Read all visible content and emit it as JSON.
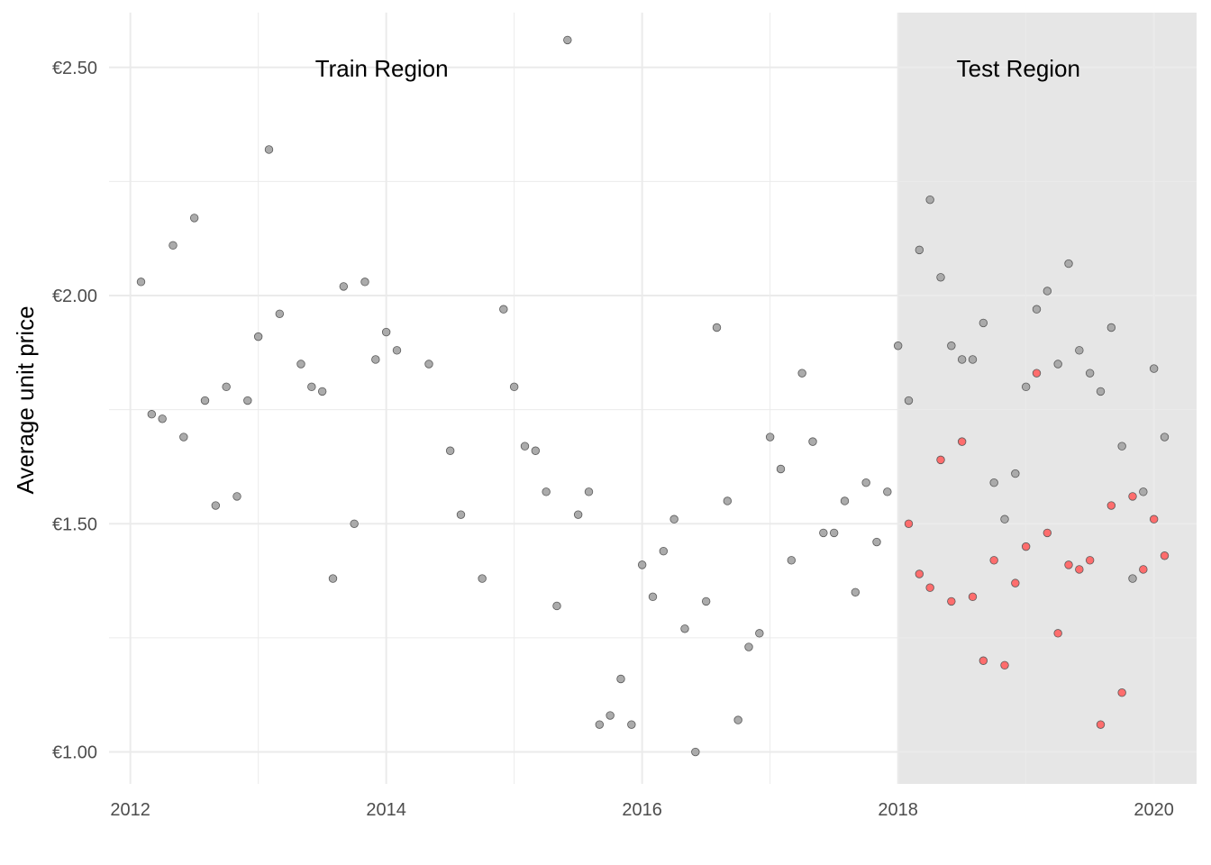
{
  "chart_data": {
    "type": "scatter",
    "title": "",
    "xlabel": "",
    "ylabel": "Average unit price",
    "x_unit": "date",
    "xlim": [
      "2011-11-01",
      "2020-05-01"
    ],
    "ylim": [
      0.93,
      2.62
    ],
    "x_ticks": [
      "2012",
      "2014",
      "2016",
      "2018",
      "2020"
    ],
    "y_ticks": [
      {
        "value": 1.0,
        "label": "€1.00"
      },
      {
        "value": 1.5,
        "label": "€1.50"
      },
      {
        "value": 2.0,
        "label": "€2.00"
      },
      {
        "value": 2.5,
        "label": "€2.50"
      }
    ],
    "grid": true,
    "regions": [
      {
        "label": "Train Region",
        "start": "2011-11-01",
        "end": "2018-01-01",
        "shaded": false
      },
      {
        "label": "Test Region",
        "start": "2018-01-01",
        "end": "2020-05-01",
        "shaded": true,
        "fill": "#e6e6e6"
      }
    ],
    "colors": {
      "observed": "#a6a6a6",
      "predicted": "#ff6666",
      "point_stroke": "#595959"
    },
    "series": [
      {
        "color": "#a6a6a6",
        "points": [
          {
            "x": "2012-02",
            "y": 2.03
          },
          {
            "x": "2012-03",
            "y": 1.74
          },
          {
            "x": "2012-04",
            "y": 1.73
          },
          {
            "x": "2012-05",
            "y": 2.11
          },
          {
            "x": "2012-06",
            "y": 1.69
          },
          {
            "x": "2012-07",
            "y": 2.17
          },
          {
            "x": "2012-08",
            "y": 1.77
          },
          {
            "x": "2012-09",
            "y": 1.54
          },
          {
            "x": "2012-10",
            "y": 1.8
          },
          {
            "x": "2012-11",
            "y": 1.56
          },
          {
            "x": "2012-12",
            "y": 1.77
          },
          {
            "x": "2013-01",
            "y": 1.91
          },
          {
            "x": "2013-02",
            "y": 2.32
          },
          {
            "x": "2013-03",
            "y": 1.96
          },
          {
            "x": "2013-05",
            "y": 1.85
          },
          {
            "x": "2013-06",
            "y": 1.8
          },
          {
            "x": "2013-07",
            "y": 1.79
          },
          {
            "x": "2013-08",
            "y": 1.38
          },
          {
            "x": "2013-09",
            "y": 2.02
          },
          {
            "x": "2013-10",
            "y": 1.5
          },
          {
            "x": "2013-11",
            "y": 2.03
          },
          {
            "x": "2013-12",
            "y": 1.86
          },
          {
            "x": "2014-01",
            "y": 1.92
          },
          {
            "x": "2014-02",
            "y": 1.88
          },
          {
            "x": "2014-05",
            "y": 1.85
          },
          {
            "x": "2014-07",
            "y": 1.66
          },
          {
            "x": "2014-08",
            "y": 1.52
          },
          {
            "x": "2014-10",
            "y": 1.38
          },
          {
            "x": "2014-12",
            "y": 1.97
          },
          {
            "x": "2015-01",
            "y": 1.8
          },
          {
            "x": "2015-02",
            "y": 1.67
          },
          {
            "x": "2015-03",
            "y": 1.66
          },
          {
            "x": "2015-04",
            "y": 1.57
          },
          {
            "x": "2015-05",
            "y": 1.32
          },
          {
            "x": "2015-06",
            "y": 2.56
          },
          {
            "x": "2015-07",
            "y": 1.52
          },
          {
            "x": "2015-08",
            "y": 1.57
          },
          {
            "x": "2015-09",
            "y": 1.06
          },
          {
            "x": "2015-10",
            "y": 1.08
          },
          {
            "x": "2015-11",
            "y": 1.16
          },
          {
            "x": "2015-12",
            "y": 1.06
          },
          {
            "x": "2016-01",
            "y": 1.41
          },
          {
            "x": "2016-02",
            "y": 1.34
          },
          {
            "x": "2016-03",
            "y": 1.44
          },
          {
            "x": "2016-04",
            "y": 1.51
          },
          {
            "x": "2016-05",
            "y": 1.27
          },
          {
            "x": "2016-06",
            "y": 1.0
          },
          {
            "x": "2016-07",
            "y": 1.33
          },
          {
            "x": "2016-08",
            "y": 1.93
          },
          {
            "x": "2016-09",
            "y": 1.55
          },
          {
            "x": "2016-10",
            "y": 1.07
          },
          {
            "x": "2016-11",
            "y": 1.23
          },
          {
            "x": "2016-12",
            "y": 1.26
          },
          {
            "x": "2017-01",
            "y": 1.69
          },
          {
            "x": "2017-02",
            "y": 1.62
          },
          {
            "x": "2017-03",
            "y": 1.42
          },
          {
            "x": "2017-04",
            "y": 1.83
          },
          {
            "x": "2017-05",
            "y": 1.68
          },
          {
            "x": "2017-06",
            "y": 1.48
          },
          {
            "x": "2017-07",
            "y": 1.48
          },
          {
            "x": "2017-08",
            "y": 1.55
          },
          {
            "x": "2017-09",
            "y": 1.35
          },
          {
            "x": "2017-10",
            "y": 1.59
          },
          {
            "x": "2017-11",
            "y": 1.46
          },
          {
            "x": "2017-12",
            "y": 1.57
          },
          {
            "x": "2018-01",
            "y": 1.89
          },
          {
            "x": "2018-02",
            "y": 1.77
          },
          {
            "x": "2018-03",
            "y": 2.1
          },
          {
            "x": "2018-04",
            "y": 2.21
          },
          {
            "x": "2018-05",
            "y": 2.04
          },
          {
            "x": "2018-06",
            "y": 1.89
          },
          {
            "x": "2018-07",
            "y": 1.86
          },
          {
            "x": "2018-08",
            "y": 1.86
          },
          {
            "x": "2018-09",
            "y": 1.94
          },
          {
            "x": "2018-10",
            "y": 1.59
          },
          {
            "x": "2018-11",
            "y": 1.51
          },
          {
            "x": "2018-12",
            "y": 1.61
          },
          {
            "x": "2019-01",
            "y": 1.8
          },
          {
            "x": "2019-02",
            "y": 1.97
          },
          {
            "x": "2019-03",
            "y": 2.01
          },
          {
            "x": "2019-04",
            "y": 1.85
          },
          {
            "x": "2019-05",
            "y": 2.07
          },
          {
            "x": "2019-06",
            "y": 1.88
          },
          {
            "x": "2019-07",
            "y": 1.83
          },
          {
            "x": "2019-08",
            "y": 1.79
          },
          {
            "x": "2019-09",
            "y": 1.93
          },
          {
            "x": "2019-10",
            "y": 1.67
          },
          {
            "x": "2019-11",
            "y": 1.38
          },
          {
            "x": "2019-12",
            "y": 1.57
          },
          {
            "x": "2020-01",
            "y": 1.84
          },
          {
            "x": "2020-02",
            "y": 1.69
          }
        ]
      },
      {
        "color": "#ff6666",
        "points": [
          {
            "x": "2018-02",
            "y": 1.5
          },
          {
            "x": "2018-03",
            "y": 1.39
          },
          {
            "x": "2018-04",
            "y": 1.36
          },
          {
            "x": "2018-05",
            "y": 1.64
          },
          {
            "x": "2018-06",
            "y": 1.33
          },
          {
            "x": "2018-07",
            "y": 1.68
          },
          {
            "x": "2018-08",
            "y": 1.34
          },
          {
            "x": "2018-09",
            "y": 1.2
          },
          {
            "x": "2018-10",
            "y": 1.42
          },
          {
            "x": "2018-11",
            "y": 1.19
          },
          {
            "x": "2018-12",
            "y": 1.37
          },
          {
            "x": "2019-01",
            "y": 1.45
          },
          {
            "x": "2019-02",
            "y": 1.83
          },
          {
            "x": "2019-03",
            "y": 1.48
          },
          {
            "x": "2019-04",
            "y": 1.26
          },
          {
            "x": "2019-05",
            "y": 1.41
          },
          {
            "x": "2019-06",
            "y": 1.4
          },
          {
            "x": "2019-07",
            "y": 1.42
          },
          {
            "x": "2019-08",
            "y": 1.06
          },
          {
            "x": "2019-09",
            "y": 1.54
          },
          {
            "x": "2019-10",
            "y": 1.13
          },
          {
            "x": "2019-11",
            "y": 1.56
          },
          {
            "x": "2019-12",
            "y": 1.4
          },
          {
            "x": "2020-01",
            "y": 1.51
          },
          {
            "x": "2020-02",
            "y": 1.43
          }
        ]
      }
    ]
  }
}
